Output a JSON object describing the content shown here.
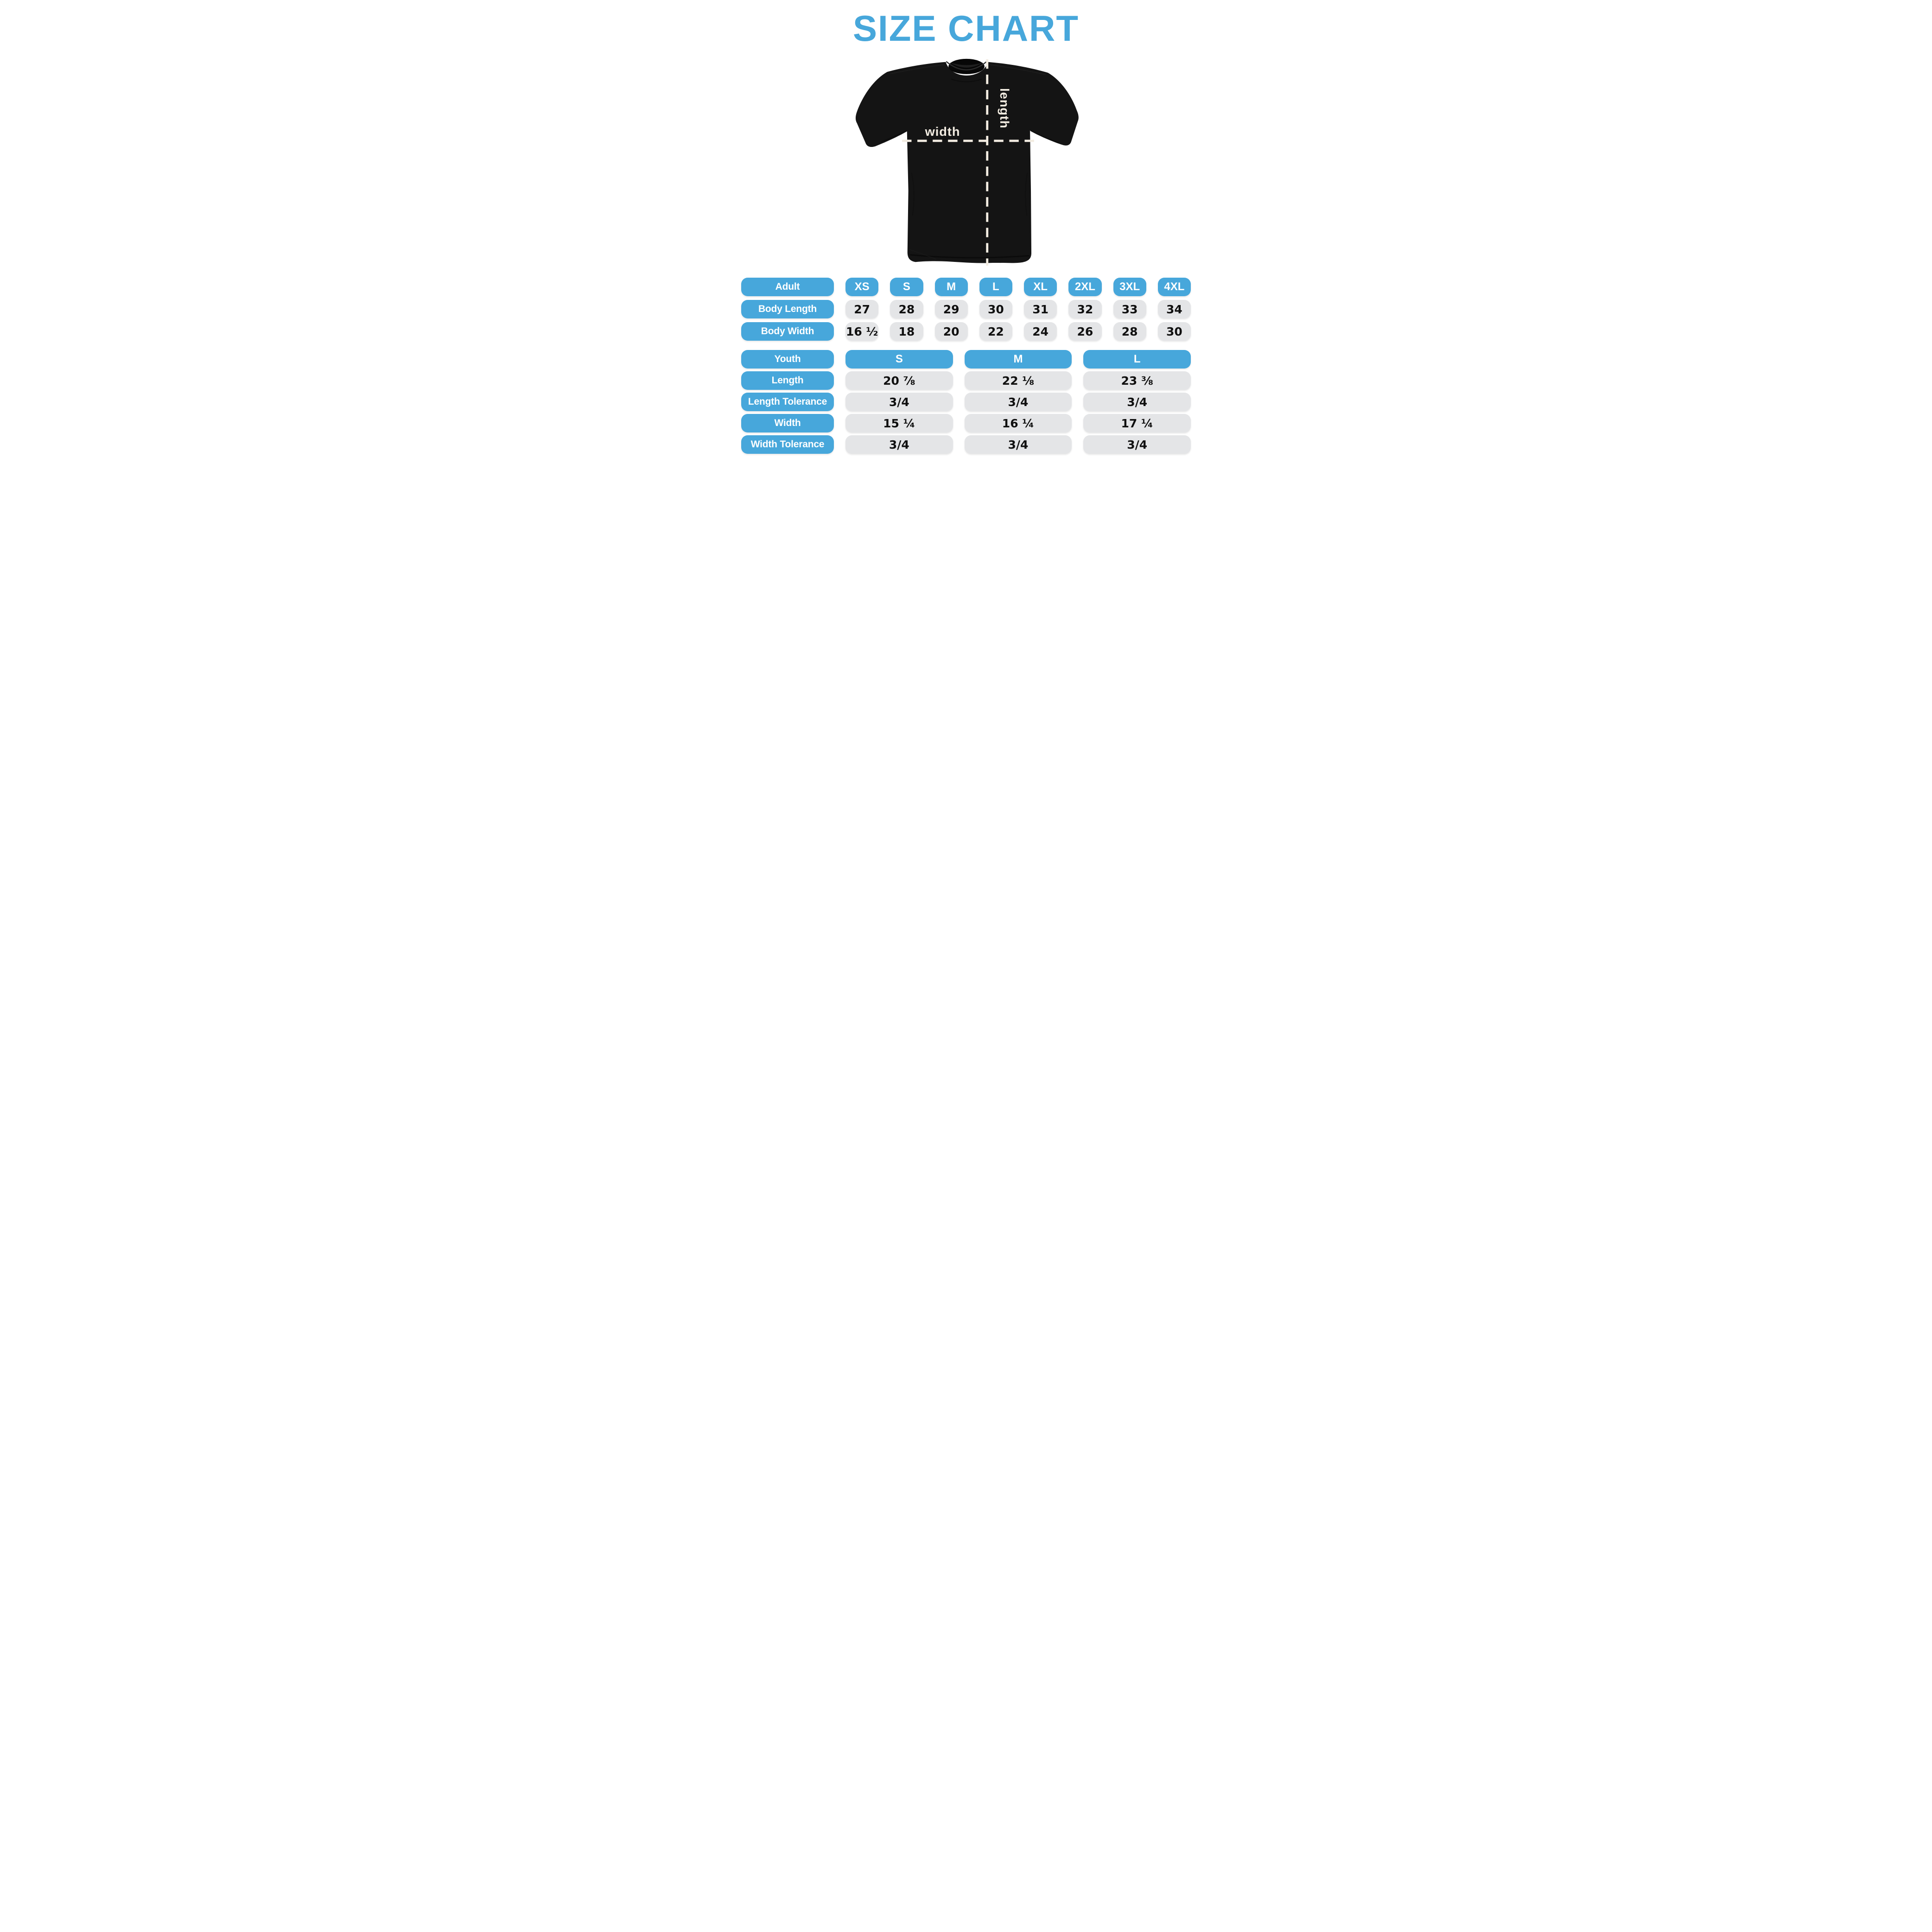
{
  "title": "SIZE CHART",
  "colors": {
    "accent_blue": "#47A7DB",
    "pill_gray": "#E4E5E7",
    "cream_dash": "#F2ECE1",
    "shirt_black": "#141414"
  },
  "diagram": {
    "width_label": "width",
    "length_label": "length"
  },
  "adult_table": {
    "label": "Adult",
    "sizes": [
      "XS",
      "S",
      "M",
      "L",
      "XL",
      "2XL",
      "3XL",
      "4XL"
    ],
    "rows": [
      {
        "label": "Body Length",
        "values": [
          "27",
          "28",
          "29",
          "30",
          "31",
          "32",
          "33",
          "34"
        ]
      },
      {
        "label": "Body Width",
        "values": [
          "16 ½",
          "18",
          "20",
          "22",
          "24",
          "26",
          "28",
          "30"
        ]
      }
    ]
  },
  "youth_table": {
    "label": "Youth",
    "sizes": [
      "S",
      "M",
      "L"
    ],
    "rows": [
      {
        "label": "Length",
        "values": [
          "20 ⅞",
          "22 ⅛",
          "23 ⅜"
        ]
      },
      {
        "label": "Length Tolerance",
        "values": [
          "3/4",
          "3/4",
          "3/4"
        ]
      },
      {
        "label": "Width",
        "values": [
          "15 ¼",
          "16 ¼",
          "17 ¼"
        ]
      },
      {
        "label": "Width Tolerance",
        "values": [
          "3/4",
          "3/4",
          "3/4"
        ]
      }
    ]
  }
}
